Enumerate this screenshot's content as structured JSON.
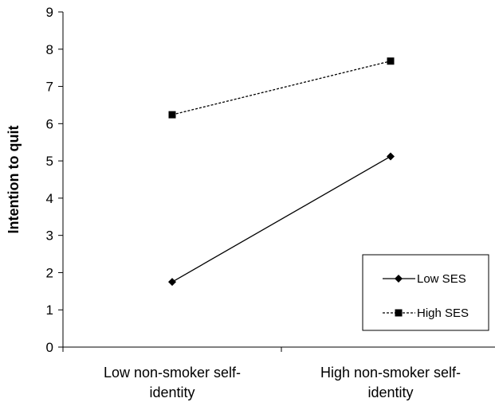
{
  "chart_data": {
    "type": "line",
    "title": "",
    "xlabel": "",
    "ylabel": "Intention to quit",
    "categories": [
      [
        "Low non-smoker self-",
        "identity"
      ],
      [
        "High non-smoker self-",
        "identity"
      ]
    ],
    "ylim": [
      0,
      9
    ],
    "yticks": [
      0,
      1,
      2,
      3,
      4,
      5,
      6,
      7,
      8,
      9
    ],
    "grid": false,
    "legend_position": "bottom-right",
    "series": [
      {
        "name": "Low SES",
        "values": [
          1.75,
          5.12
        ],
        "marker": "diamond",
        "line_style": "solid",
        "color": "#000000"
      },
      {
        "name": "High SES",
        "values": [
          6.24,
          7.68
        ],
        "marker": "square",
        "line_style": "dashed",
        "color": "#000000"
      }
    ]
  }
}
